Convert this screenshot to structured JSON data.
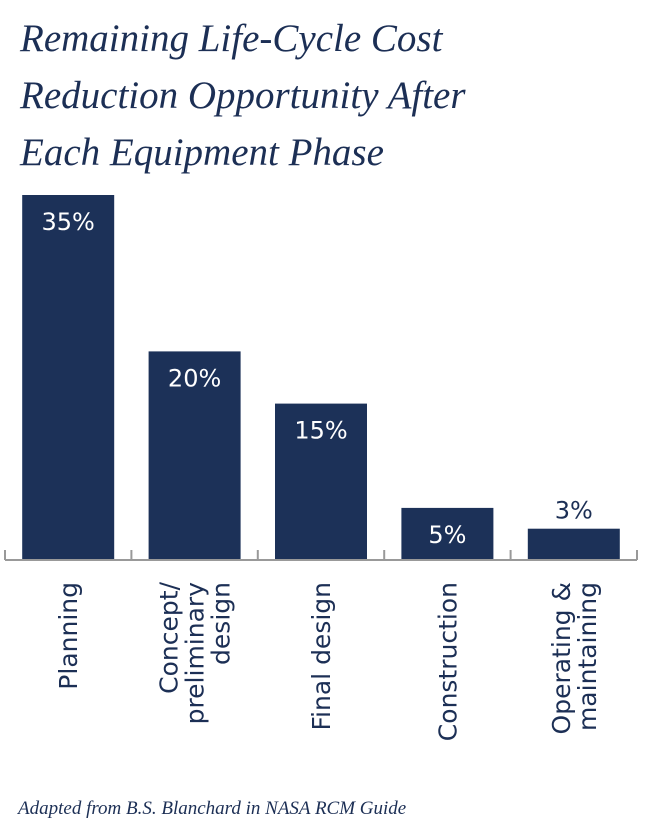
{
  "title_lines": [
    "Remaining Life-Cycle Cost",
    "Reduction Opportunity After",
    "Each Equipment Phase"
  ],
  "caption": "Adapted from B.S. Blanchard in NASA RCM Guide",
  "colors": {
    "bar": "#1c3158",
    "text": "#1c2f55",
    "axis": "#999999",
    "bar_label": "#ffffff",
    "outside_label": "#1c2f55"
  },
  "chart_data": {
    "type": "bar",
    "title": "Remaining Life-Cycle Cost Reduction Opportunity After Each Equipment Phase",
    "xlabel": "",
    "ylabel": "",
    "unit": "%",
    "ylim": [
      0,
      35
    ],
    "grid": false,
    "legend": "none",
    "categories": [
      [
        "Planning"
      ],
      [
        "Concept/",
        "preliminary",
        "design"
      ],
      [
        "Final design"
      ],
      [
        "Construction"
      ],
      [
        "Operating &",
        "maintaining"
      ]
    ],
    "values": [
      35,
      20,
      15,
      5,
      3
    ],
    "data_labels": [
      "35%",
      "20%",
      "15%",
      "5%",
      "3%"
    ]
  }
}
